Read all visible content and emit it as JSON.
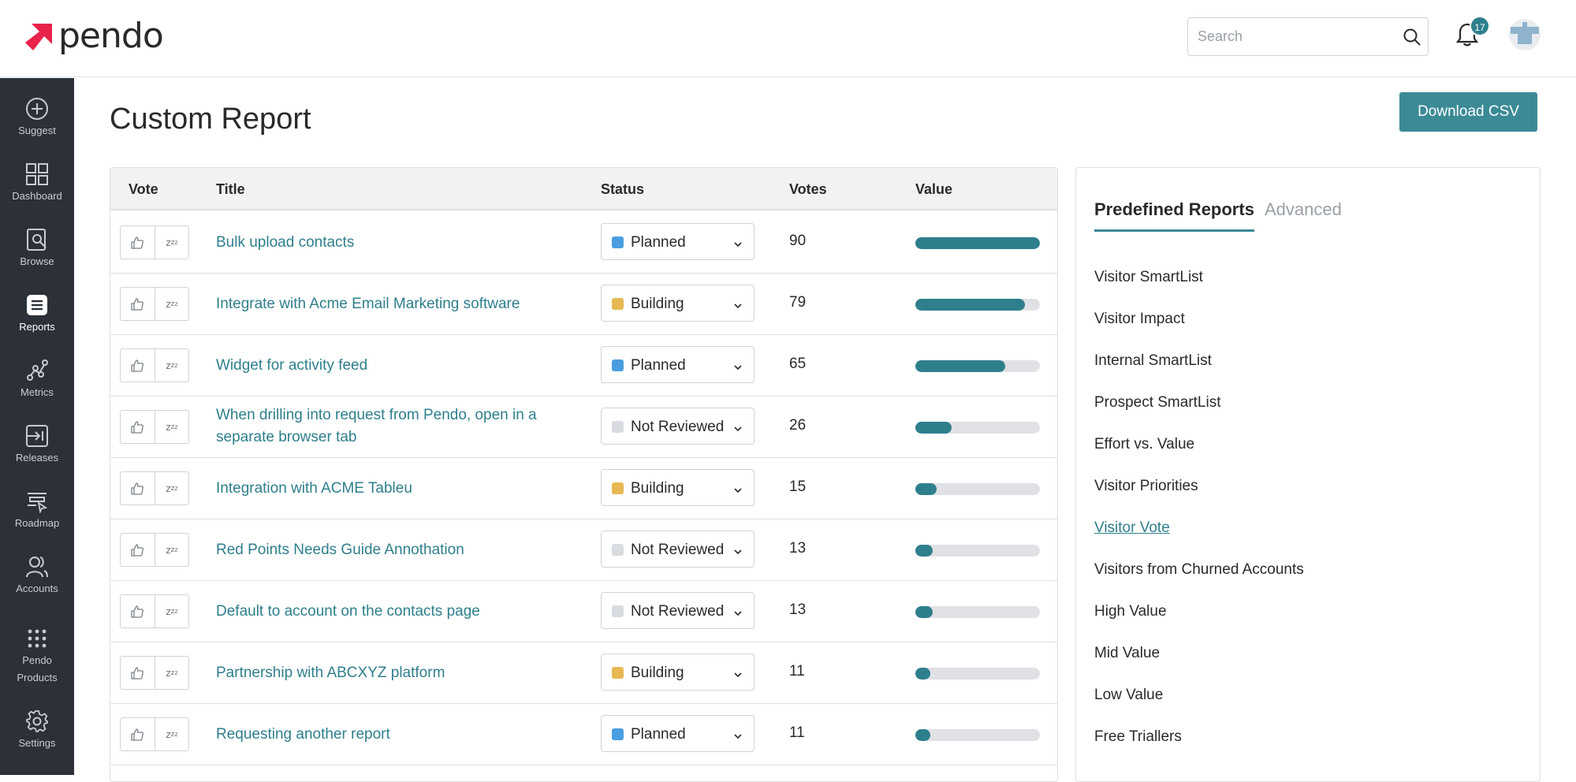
{
  "header": {
    "logo_text": "pendo",
    "search_placeholder": "Search",
    "notification_count": "17",
    "brand_color": "#e8224a",
    "accent_color": "#3b8a96"
  },
  "sidebar": {
    "items": [
      {
        "label": "Suggest",
        "icon": "plus-circle-icon"
      },
      {
        "label": "Dashboard",
        "icon": "grid-icon"
      },
      {
        "label": "Browse",
        "icon": "browse-icon"
      },
      {
        "label": "Reports",
        "icon": "reports-icon",
        "active": true
      },
      {
        "label": "Metrics",
        "icon": "metrics-icon"
      },
      {
        "label": "Releases",
        "icon": "releases-icon"
      },
      {
        "label": "Roadmap",
        "icon": "roadmap-icon"
      },
      {
        "label": "Accounts",
        "icon": "accounts-icon"
      },
      {
        "label": "Pendo\nProducts",
        "icon": "dots-grid-icon"
      },
      {
        "label": "Settings",
        "icon": "gear-icon"
      }
    ]
  },
  "main": {
    "title": "Custom Report",
    "download_label": "Download CSV"
  },
  "table": {
    "columns": [
      "Vote",
      "Title",
      "Status",
      "Votes",
      "Value"
    ],
    "rows": [
      {
        "title": "Bulk upload contacts",
        "status": "Planned",
        "votes": "90",
        "value_pct": 100
      },
      {
        "title": "Integrate with Acme Email Marketing software",
        "status": "Building",
        "votes": "79",
        "value_pct": 88
      },
      {
        "title": "Widget for activity feed",
        "status": "Planned",
        "votes": "65",
        "value_pct": 72
      },
      {
        "title": "When drilling into request from Pendo, open in a separate browser tab",
        "status": "Not Reviewed",
        "votes": "26",
        "value_pct": 29
      },
      {
        "title": "Integration with ACME Tableu",
        "status": "Building",
        "votes": "15",
        "value_pct": 17
      },
      {
        "title": "Red Points Needs Guide Annothation",
        "status": "Not Reviewed",
        "votes": "13",
        "value_pct": 14
      },
      {
        "title": "Default to account on the contacts page",
        "status": "Not Reviewed",
        "votes": "13",
        "value_pct": 14
      },
      {
        "title": "Partnership with ABCXYZ platform",
        "status": "Building",
        "votes": "11",
        "value_pct": 12
      },
      {
        "title": "Requesting another report",
        "status": "Planned",
        "votes": "11",
        "value_pct": 12
      }
    ],
    "status_colors": {
      "Planned": "#4a9ee0",
      "Building": "#e7b955",
      "Not Reviewed": "#d8dbe0"
    }
  },
  "reports_panel": {
    "tabs": [
      "Predefined Reports",
      "Advanced"
    ],
    "items": [
      "Visitor SmartList",
      "Visitor Impact",
      "Internal SmartList",
      "Prospect SmartList",
      "Effort vs. Value",
      "Visitor Priorities",
      "Visitor Vote",
      "Visitors from Churned Accounts",
      "High Value",
      "Mid Value",
      "Low Value",
      "Free Triallers"
    ],
    "link_item": "Visitor Vote"
  }
}
